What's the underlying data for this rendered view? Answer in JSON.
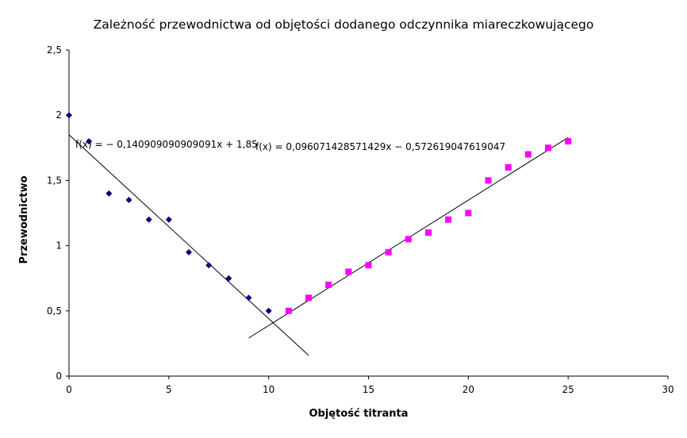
{
  "chart_data": {
    "type": "scatter",
    "title": "Zależność przewodnictwa od objętości dodanego odczynnika miareczkowującego",
    "xlabel": "Objętość titranta",
    "ylabel": "Przewodnictwo",
    "xlim": [
      0,
      30
    ],
    "ylim": [
      0,
      2.5
    ],
    "xticks": [
      0,
      5,
      10,
      15,
      20,
      25,
      30
    ],
    "xtick_labels": [
      "0",
      "5",
      "10",
      "15",
      "20",
      "25",
      "30"
    ],
    "yticks": [
      0,
      0.5,
      1,
      1.5,
      2,
      2.5
    ],
    "ytick_labels": [
      "0",
      "0,5",
      "1",
      "1,5",
      "2",
      "2,5"
    ],
    "grid": false,
    "legend": null,
    "series": [
      {
        "marker": "diamond",
        "color": "#000080",
        "points": [
          [
            0,
            2.0
          ],
          [
            1,
            1.8
          ],
          [
            2,
            1.4
          ],
          [
            3,
            1.35
          ],
          [
            4,
            1.2
          ],
          [
            5,
            1.2
          ],
          [
            6,
            0.95
          ],
          [
            7,
            0.85
          ],
          [
            8,
            0.75
          ],
          [
            9,
            0.6
          ],
          [
            10,
            0.5
          ]
        ],
        "trendline": {
          "slope": -0.140909090909091,
          "intercept": 1.85,
          "x_range": [
            0,
            12
          ],
          "label": "f(x) = − 0,140909090909091x + 1,85"
        }
      },
      {
        "marker": "square",
        "color": "#ff00ff",
        "points": [
          [
            11,
            0.5
          ],
          [
            12,
            0.6
          ],
          [
            13,
            0.7
          ],
          [
            14,
            0.8
          ],
          [
            15,
            0.85
          ],
          [
            16,
            0.95
          ],
          [
            17,
            1.05
          ],
          [
            18,
            1.1
          ],
          [
            19,
            1.2
          ],
          [
            20,
            1.25
          ],
          [
            21,
            1.5
          ],
          [
            22,
            1.6
          ],
          [
            23,
            1.7
          ],
          [
            24,
            1.75
          ],
          [
            25,
            1.8
          ]
        ],
        "trendline": {
          "slope": 0.096071428571429,
          "intercept": -0.572619047619047,
          "x_range": [
            9,
            25
          ],
          "label": "f(x) = 0,096071428571429x − 0,572619047619047"
        }
      }
    ]
  }
}
